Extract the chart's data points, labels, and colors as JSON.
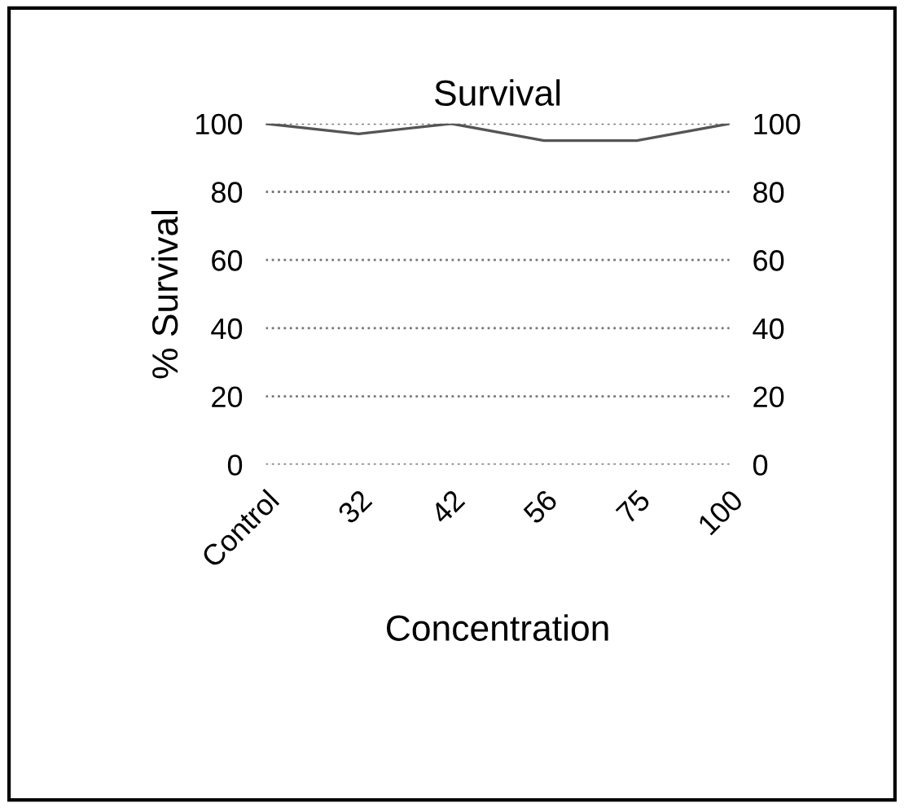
{
  "chart_data": {
    "type": "line",
    "title": "Survival",
    "xlabel": "Concentration",
    "ylabel": "% Survival",
    "categories": [
      "Control",
      "32",
      "42",
      "56",
      "75",
      "100"
    ],
    "series": [
      {
        "color": "#555555",
        "values": [
          100,
          97,
          100,
          95,
          95,
          100
        ]
      }
    ],
    "ylim": [
      0,
      100
    ],
    "yticks": [
      0,
      20,
      40,
      60,
      80,
      100
    ],
    "y2lim": [
      0,
      100
    ],
    "y2ticks": [
      0,
      20,
      40,
      60,
      80,
      100
    ],
    "grid": "y",
    "legend": false,
    "marker": "none",
    "line_style": "solid"
  }
}
